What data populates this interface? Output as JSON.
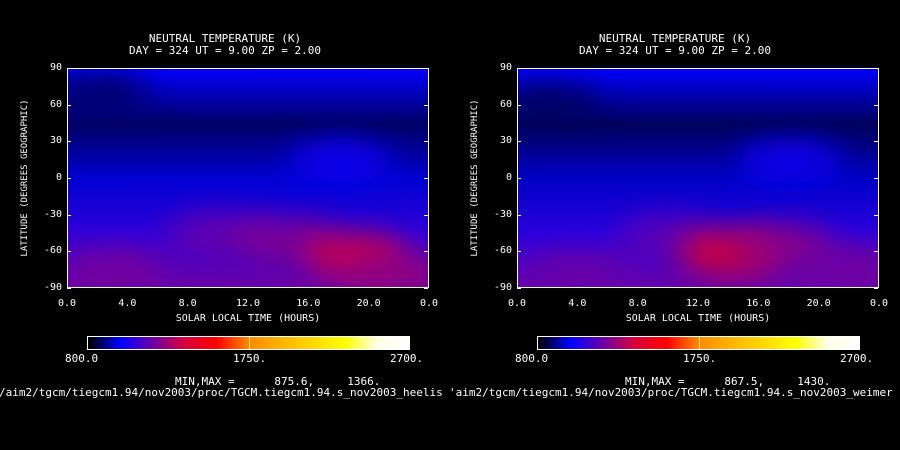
{
  "chart_data": [
    {
      "type": "heatmap",
      "title": "NEUTRAL TEMPERATURE (K)",
      "subtitle": "DAY = 324  UT =  9.00  ZP =   2.00",
      "xlabel": "SOLAR LOCAL TIME (HOURS)",
      "ylabel": "LATITUDE (DEGREES GEOGRAPHIC)",
      "x_ticks": [
        "0.0",
        "4.0",
        "8.0",
        "12.0",
        "16.0",
        "20.0",
        "0.0"
      ],
      "y_ticks": [
        "90",
        "60",
        "30",
        "0",
        "-30",
        "-60",
        "-90"
      ],
      "xlim": [
        0,
        24
      ],
      "ylim": [
        -90,
        90
      ],
      "colorbar": {
        "min_label": "800.0",
        "mid_label": "1750.",
        "max_label": "2700."
      },
      "minmax_label": "MIN,MAX =",
      "min_value": "875.6,",
      "max_value": "1366.",
      "min": 875.6,
      "max": 1366,
      "path_text": "/aim2/tgcm/tiegcm1.94/nov2003/proc/TGCM.tiegcm1.94.s_nov2003_heelis",
      "hotspots": [
        {
          "x": 10.0,
          "y": -45,
          "value": 1180
        },
        {
          "x": 14.5,
          "y": -50,
          "value": 1230
        },
        {
          "x": 19.0,
          "y": -62,
          "value": 1366
        },
        {
          "x": 3.0,
          "y": -75,
          "value": 1200
        },
        {
          "x": 22.0,
          "y": -78,
          "value": 1250
        },
        {
          "x": 2.0,
          "y": 70,
          "value": 875.6
        },
        {
          "x": 18.0,
          "y": 15,
          "value": 1010
        }
      ]
    },
    {
      "type": "heatmap",
      "title": "NEUTRAL TEMPERATURE (K)",
      "subtitle": "DAY = 324  UT =  9.00  ZP =   2.00",
      "xlabel": "SOLAR LOCAL TIME (HOURS)",
      "ylabel": "LATITUDE (DEGREES GEOGRAPHIC)",
      "x_ticks": [
        "0.0",
        "4.0",
        "8.0",
        "12.0",
        "16.0",
        "20.0",
        "0.0"
      ],
      "y_ticks": [
        "90",
        "60",
        "30",
        "0",
        "-30",
        "-60",
        "-90"
      ],
      "xlim": [
        0,
        24
      ],
      "ylim": [
        -90,
        90
      ],
      "colorbar": {
        "min_label": "800.0",
        "mid_label": "1750.",
        "max_label": "2700."
      },
      "minmax_label": "MIN,MAX =",
      "min_value": "867.5,",
      "max_value": "1430.",
      "min": 867.5,
      "max": 1430,
      "path_text": "'aim2/tgcm/tiegcm1.94/nov2003/proc/TGCM.tiegcm1.94.s_nov2003_weimer",
      "hotspots": [
        {
          "x": 10.0,
          "y": -48,
          "value": 1170
        },
        {
          "x": 14.0,
          "y": -60,
          "value": 1430
        },
        {
          "x": 17.5,
          "y": -55,
          "value": 1250
        },
        {
          "x": 4.0,
          "y": -78,
          "value": 1180
        },
        {
          "x": 22.0,
          "y": -72,
          "value": 1200
        },
        {
          "x": 2.0,
          "y": 60,
          "value": 867.5
        },
        {
          "x": 18.0,
          "y": 15,
          "value": 1010
        }
      ]
    }
  ],
  "colors": {
    "background": "#000000",
    "foreground": "#ffffff",
    "colorbar_stops": [
      "#000000",
      "#0000ff",
      "#6a00a8",
      "#d8003a",
      "#ff0000",
      "#ff8a00",
      "#ffb300",
      "#ffd800",
      "#ffff00",
      "#ffffe6",
      "#ffffff"
    ]
  }
}
